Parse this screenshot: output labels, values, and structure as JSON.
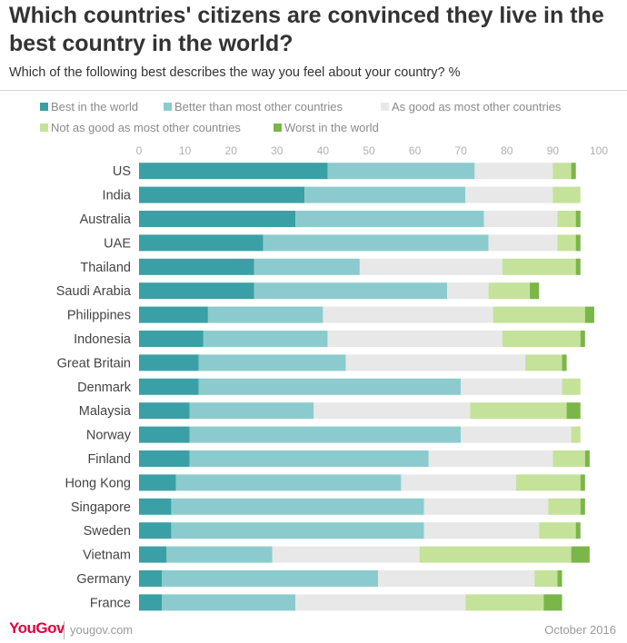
{
  "title": "Which countries' citizens are convinced they live in the best country in the world?",
  "subtitle": "Which of the following best describes the way you feel about your country? %",
  "footer": {
    "brand": "YouGov",
    "url": "yougov.com",
    "date": "October 2016"
  },
  "chart_data": {
    "type": "bar",
    "orientation": "horizontal",
    "stacked": true,
    "xlim": [
      0,
      100
    ],
    "xticks": [
      0,
      10,
      20,
      30,
      40,
      50,
      60,
      70,
      80,
      90,
      100
    ],
    "categories": [
      "US",
      "India",
      "Australia",
      "UAE",
      "Thailand",
      "Saudi Arabia",
      "Philippines",
      "Indonesia",
      "Great Britain",
      "Denmark",
      "Malaysia",
      "Norway",
      "Finland",
      "Hong Kong",
      "Singapore",
      "Sweden",
      "Vietnam",
      "Germany",
      "France"
    ],
    "series": [
      {
        "name": "Best in the world",
        "color": "#3aa0a5",
        "values": [
          41,
          36,
          34,
          27,
          25,
          25,
          15,
          14,
          13,
          13,
          11,
          11,
          11,
          8,
          7,
          7,
          6,
          5,
          5
        ]
      },
      {
        "name": "Better than most other countries",
        "color": "#8ccbcd",
        "values": [
          32,
          35,
          41,
          49,
          23,
          42,
          25,
          27,
          32,
          57,
          27,
          59,
          52,
          49,
          55,
          55,
          23,
          47,
          29
        ]
      },
      {
        "name": "As good as most other countries",
        "color": "#e8e8e8",
        "values": [
          17,
          19,
          16,
          15,
          31,
          9,
          37,
          38,
          39,
          22,
          34,
          24,
          27,
          25,
          27,
          25,
          32,
          34,
          37
        ]
      },
      {
        "name": "Not as good as most other countries",
        "color": "#c5e29a",
        "values": [
          4,
          6,
          4,
          4,
          16,
          9,
          20,
          17,
          8,
          4,
          21,
          2,
          7,
          14,
          7,
          8,
          33,
          5,
          17
        ]
      },
      {
        "name": "Worst in the world",
        "color": "#7ab648",
        "values": [
          1,
          0,
          1,
          1,
          1,
          2,
          2,
          1,
          1,
          0,
          3,
          0,
          1,
          1,
          1,
          1,
          4,
          1,
          4
        ]
      }
    ]
  }
}
